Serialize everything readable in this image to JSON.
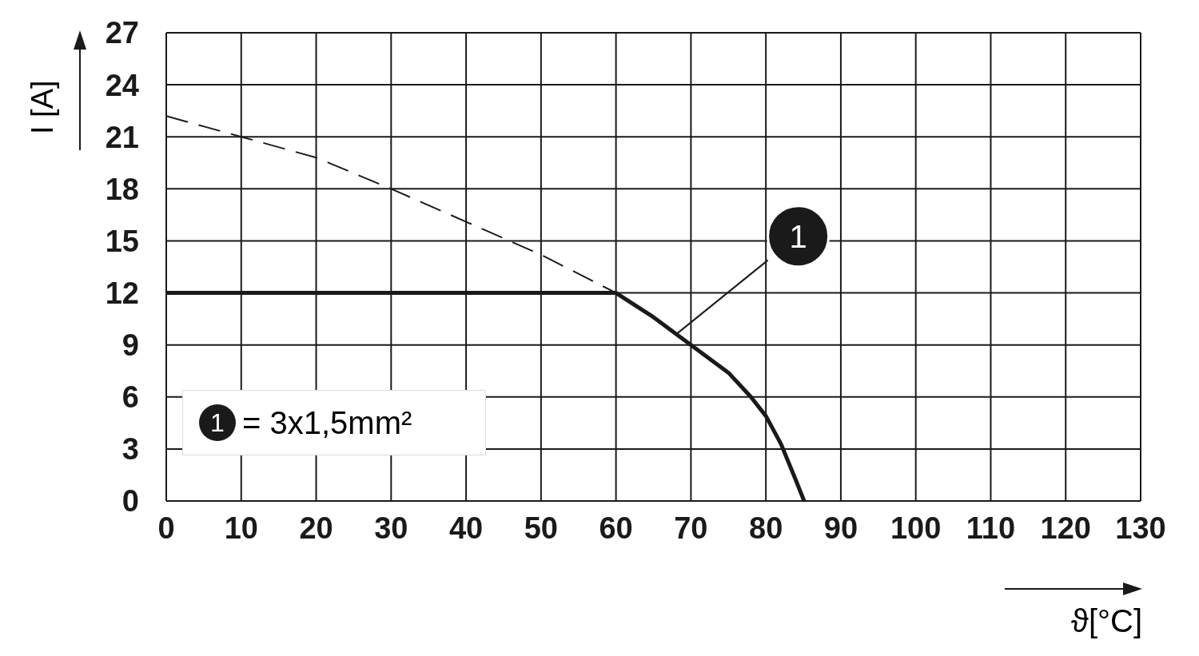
{
  "chart_data": {
    "type": "line",
    "xlabel": "ϑ[°C]",
    "ylabel": "I [A]",
    "series": [
      {
        "color": "#1a1a1a",
        "line_style": "solid",
        "x": [
          0,
          60,
          65,
          70,
          75,
          78,
          80,
          82,
          84,
          85.1
        ],
        "values": [
          12,
          12,
          10.6,
          9,
          7.4,
          6,
          4.9,
          3.3,
          1.2,
          0
        ]
      },
      {
        "color": "#1a1a1a",
        "line_style": "dashed",
        "x": [
          0,
          10,
          20,
          30,
          40,
          50,
          60
        ],
        "values": [
          22.2,
          21,
          19.8,
          18,
          16.1,
          14.2,
          12
        ]
      }
    ],
    "xlim": [
      0,
      130
    ],
    "xticks": [
      0,
      10,
      20,
      30,
      40,
      50,
      60,
      70,
      80,
      90,
      100,
      110,
      120,
      130
    ],
    "ylim": [
      0,
      27
    ],
    "yticks": [
      0,
      3,
      6,
      9,
      12,
      15,
      18,
      21,
      24,
      27
    ],
    "grid": true,
    "marker": "none",
    "annotations": [
      {
        "text": "1",
        "x": 68,
        "y": 9.6
      },
      "1 = 3x1,5mm²"
    ]
  }
}
